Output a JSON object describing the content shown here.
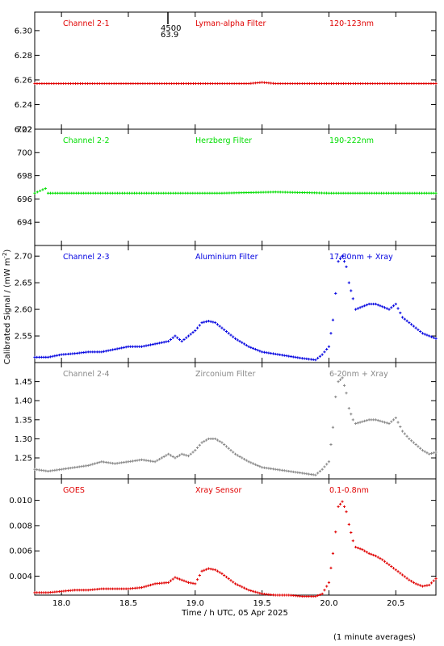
{
  "footer_note": "(1 minute averages)",
  "annotation": {
    "label_top": "4500",
    "label_bottom": "63.9"
  },
  "chart_data": {
    "type": "scatter",
    "xlabel": "Time / h UTC, 05 Apr 2025",
    "ylabel": "Calibrated Signal / (mW m",
    "ylabel_sup": "-2",
    "ylabel_close": ")",
    "xlim": [
      17.8,
      20.8
    ],
    "x_ticks": [
      18.0,
      18.5,
      19.0,
      19.5,
      20.0,
      20.5
    ],
    "x_tick_labels": [
      "18.0",
      "18.5",
      "19.0",
      "19.5",
      "20.0",
      "20.5"
    ],
    "panels": [
      {
        "name": "Channel 2-1",
        "filter": "Lyman-alpha Filter",
        "band": "120-123nm",
        "color": "#e00000",
        "ylim": [
          6.22,
          6.315
        ],
        "ticks": [
          6.22,
          6.24,
          6.26,
          6.28,
          6.3
        ],
        "tick_labels": [
          "6.22",
          "6.24",
          "6.26",
          "6.28",
          "6.30"
        ],
        "x": [
          17.8,
          18.5,
          19.4,
          19.5,
          19.6,
          20.0,
          20.8
        ],
        "y": [
          6.257,
          6.257,
          6.257,
          6.258,
          6.257,
          6.257,
          6.257
        ]
      },
      {
        "name": "Channel 2-2",
        "filter": "Herzberg Filter",
        "band": "190-222nm",
        "color": "#00dd00",
        "ylim": [
          692.0,
          702.0
        ],
        "ticks": [
          694,
          696,
          698,
          700,
          702
        ],
        "tick_labels": [
          "694",
          "696",
          "698",
          "700",
          "702"
        ],
        "x": [
          17.8,
          17.88,
          17.9,
          18.2,
          19.2,
          19.6,
          20.0,
          20.5,
          20.8
        ],
        "y": [
          696.5,
          696.9,
          696.5,
          696.5,
          696.5,
          696.6,
          696.5,
          696.5,
          696.5
        ]
      },
      {
        "name": "Channel 2-3",
        "filter": "Aluminium Filter",
        "band": "17-80nm + Xray",
        "color": "#0000e0",
        "ylim": [
          2.5,
          2.72
        ],
        "ticks": [
          2.55,
          2.6,
          2.65,
          2.7
        ],
        "tick_labels": [
          "2.55",
          "2.60",
          "2.65",
          "2.70"
        ],
        "x": [
          17.8,
          17.9,
          18.0,
          18.1,
          18.2,
          18.3,
          18.4,
          18.5,
          18.6,
          18.7,
          18.8,
          18.85,
          18.9,
          18.95,
          19.0,
          19.05,
          19.1,
          19.15,
          19.2,
          19.3,
          19.4,
          19.5,
          19.6,
          19.7,
          19.8,
          19.9,
          19.95,
          20.0,
          20.03,
          20.05,
          20.07,
          20.1,
          20.13,
          20.15,
          20.18,
          20.2,
          20.25,
          20.3,
          20.35,
          20.4,
          20.45,
          20.5,
          20.55,
          20.6,
          20.65,
          20.7,
          20.75,
          20.8
        ],
        "y": [
          2.51,
          2.51,
          2.515,
          2.517,
          2.52,
          2.52,
          2.525,
          2.53,
          2.53,
          2.535,
          2.54,
          2.55,
          2.54,
          2.55,
          2.56,
          2.575,
          2.578,
          2.575,
          2.565,
          2.545,
          2.53,
          2.52,
          2.516,
          2.512,
          2.508,
          2.505,
          2.515,
          2.53,
          2.58,
          2.63,
          2.69,
          2.7,
          2.68,
          2.65,
          2.62,
          2.6,
          2.605,
          2.61,
          2.61,
          2.605,
          2.6,
          2.61,
          2.585,
          2.575,
          2.565,
          2.555,
          2.55,
          2.545
        ]
      },
      {
        "name": "Channel 2-4",
        "filter": "Zirconium Filter",
        "band": "6-20nm + Xray",
        "color": "#888888",
        "ylim": [
          1.195,
          1.5
        ],
        "ticks": [
          1.25,
          1.3,
          1.35,
          1.4,
          1.45
        ],
        "tick_labels": [
          "1.25",
          "1.30",
          "1.35",
          "1.40",
          "1.45"
        ],
        "x": [
          17.8,
          17.9,
          18.0,
          18.1,
          18.2,
          18.3,
          18.4,
          18.5,
          18.6,
          18.7,
          18.8,
          18.85,
          18.9,
          18.95,
          19.0,
          19.05,
          19.1,
          19.15,
          19.2,
          19.3,
          19.4,
          19.5,
          19.6,
          19.7,
          19.8,
          19.9,
          19.95,
          20.0,
          20.03,
          20.05,
          20.07,
          20.1,
          20.13,
          20.15,
          20.18,
          20.2,
          20.25,
          20.3,
          20.35,
          20.4,
          20.45,
          20.5,
          20.55,
          20.6,
          20.65,
          20.7,
          20.75,
          20.8
        ],
        "y": [
          1.22,
          1.215,
          1.22,
          1.225,
          1.23,
          1.24,
          1.235,
          1.24,
          1.245,
          1.24,
          1.26,
          1.25,
          1.26,
          1.255,
          1.27,
          1.29,
          1.3,
          1.3,
          1.29,
          1.26,
          1.24,
          1.225,
          1.22,
          1.215,
          1.21,
          1.205,
          1.22,
          1.24,
          1.33,
          1.41,
          1.45,
          1.46,
          1.42,
          1.38,
          1.35,
          1.34,
          1.345,
          1.35,
          1.35,
          1.345,
          1.34,
          1.355,
          1.32,
          1.3,
          1.285,
          1.27,
          1.26,
          1.265
        ]
      },
      {
        "name": "GOES",
        "filter": "Xray Sensor",
        "band": "0.1-0.8nm",
        "color": "#e00000",
        "ylim": [
          0.0025,
          0.0117
        ],
        "ticks": [
          0.004,
          0.006,
          0.008,
          0.01
        ],
        "tick_labels": [
          "0.004",
          "0.006",
          "0.008",
          "0.010"
        ],
        "x": [
          17.8,
          17.9,
          18.0,
          18.1,
          18.2,
          18.3,
          18.4,
          18.5,
          18.6,
          18.7,
          18.8,
          18.85,
          18.9,
          18.95,
          19.0,
          19.05,
          19.1,
          19.15,
          19.2,
          19.3,
          19.4,
          19.5,
          19.6,
          19.7,
          19.8,
          19.9,
          19.95,
          20.0,
          20.03,
          20.05,
          20.07,
          20.1,
          20.13,
          20.15,
          20.18,
          20.2,
          20.25,
          20.3,
          20.35,
          20.4,
          20.45,
          20.5,
          20.55,
          20.6,
          20.65,
          20.7,
          20.75,
          20.8
        ],
        "y": [
          0.0027,
          0.0027,
          0.0028,
          0.0029,
          0.0029,
          0.003,
          0.003,
          0.003,
          0.0031,
          0.0034,
          0.0035,
          0.0039,
          0.0037,
          0.0035,
          0.0034,
          0.0044,
          0.0046,
          0.0045,
          0.0042,
          0.0034,
          0.0029,
          0.0026,
          0.0025,
          0.0025,
          0.0024,
          0.0024,
          0.0026,
          0.0035,
          0.0058,
          0.0075,
          0.0095,
          0.0099,
          0.0091,
          0.0081,
          0.0068,
          0.0063,
          0.0061,
          0.0058,
          0.0056,
          0.0053,
          0.0049,
          0.0045,
          0.0041,
          0.0037,
          0.0034,
          0.0032,
          0.0033,
          0.0038
        ]
      }
    ]
  }
}
